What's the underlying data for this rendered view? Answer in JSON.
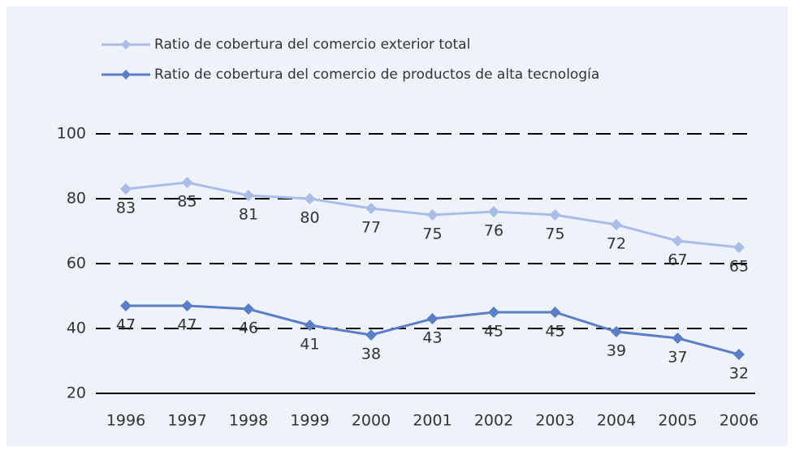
{
  "chart_data": {
    "type": "line",
    "x": [
      1996,
      1997,
      1998,
      1999,
      2000,
      2001,
      2002,
      2003,
      2004,
      2005,
      2006
    ],
    "series": [
      {
        "name": "Ratio de cobertura del comercio exterior total",
        "color": "#a9bde6",
        "values": [
          83,
          85,
          81,
          80,
          77,
          75,
          76,
          75,
          72,
          67,
          65
        ]
      },
      {
        "name": "Ratio de cobertura del comercio de productos de alta tecnología",
        "color": "#5b7fc7",
        "values": [
          47,
          47,
          46,
          41,
          38,
          43,
          45,
          45,
          39,
          37,
          32
        ]
      }
    ],
    "ylim": [
      20,
      100
    ],
    "yticks": [
      20,
      40,
      60,
      80,
      100
    ],
    "grid": true,
    "legend": "top-left"
  }
}
